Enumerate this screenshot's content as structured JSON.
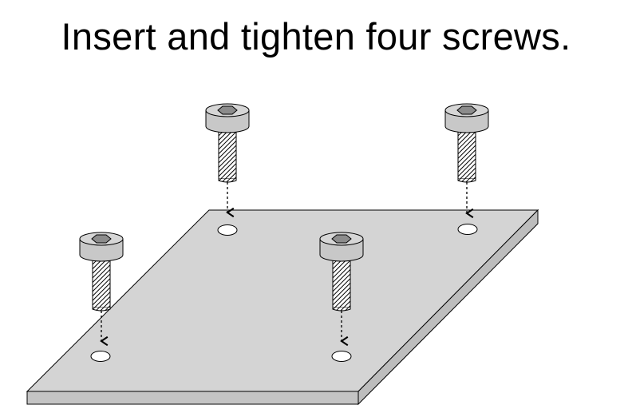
{
  "instruction": {
    "title": "Insert and tighten four screws."
  },
  "figure": {
    "plate": {
      "color": "#d4d4d4",
      "edge_color": "#bdbdbd",
      "outline": "#000000",
      "holes": 4
    },
    "screws": [
      {
        "id": "back-left"
      },
      {
        "id": "back-right"
      },
      {
        "id": "front-left"
      },
      {
        "id": "front-right"
      }
    ],
    "screw_colors": {
      "head": "#c8c8c8",
      "socket": "#8c8c8c",
      "thread": "#ffffff",
      "hatch": "#000000"
    },
    "arrow_style": "dashed"
  }
}
